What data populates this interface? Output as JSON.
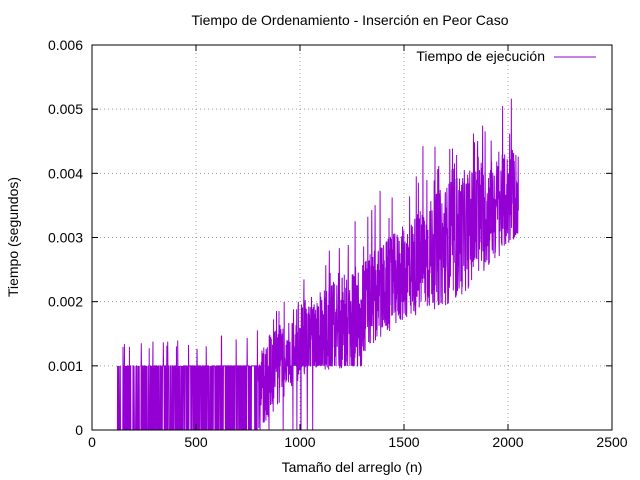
{
  "chart_data": {
    "type": "line",
    "title": "Tiempo de Ordenamiento - Inserción en Peor Caso",
    "xlabel": "Tamaño del arreglo (n)",
    "ylabel": "Tiempo (segundos)",
    "xlim": [
      0,
      2500
    ],
    "ylim": [
      0,
      0.006
    ],
    "xticks": [
      "0",
      "500",
      "1000",
      "1500",
      "2000",
      "2500"
    ],
    "yticks": [
      "0",
      "0.001",
      "0.002",
      "0.003",
      "0.004",
      "0.005",
      "0.006"
    ],
    "grid": true,
    "legend_position": "top-right",
    "series": [
      {
        "name": "Tiempo de ejecución",
        "color": "#9400d3",
        "x_range": [
          120,
          2050
        ],
        "x_step": 1,
        "description_of_values": "noisy; values are multiples of ~0.001 s for n<800, then continuous noise",
        "envelope": [
          {
            "x": 120,
            "low": 0,
            "high": 0.001,
            "peak": 0.0014
          },
          {
            "x": 500,
            "low": 0,
            "high": 0.001,
            "peak": 0.0014
          },
          {
            "x": 800,
            "low": 0,
            "high": 0.0013,
            "peak": 0.0016
          },
          {
            "x": 1000,
            "low": 0.0008,
            "high": 0.002,
            "peak": 0.0024
          },
          {
            "x": 1250,
            "low": 0.001,
            "high": 0.0025,
            "peak": 0.0034
          },
          {
            "x": 1500,
            "low": 0.0017,
            "high": 0.0032,
            "peak": 0.0044
          },
          {
            "x": 1750,
            "low": 0.002,
            "high": 0.004,
            "peak": 0.0046
          },
          {
            "x": 2050,
            "low": 0.003,
            "high": 0.0044,
            "peak": 0.0054
          }
        ]
      }
    ]
  }
}
